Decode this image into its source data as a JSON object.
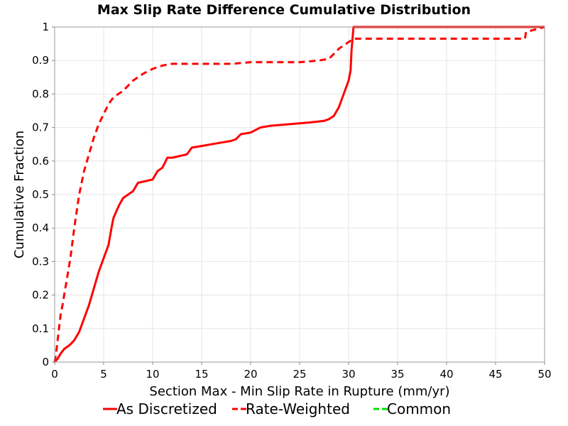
{
  "chart_data": {
    "type": "line",
    "title": "Max Slip Rate Difference Cumulative Distribution",
    "xlabel": "Section Max - Min Slip Rate in Rupture (mm/yr)",
    "ylabel": "Cumulative Fraction",
    "xlim": [
      0,
      50
    ],
    "ylim": [
      0,
      1
    ],
    "x_ticks": [
      "0",
      "5",
      "10",
      "15",
      "20",
      "25",
      "30",
      "35",
      "40",
      "45",
      "50"
    ],
    "y_ticks": [
      "0",
      "0.1",
      "0.2",
      "0.3",
      "0.4",
      "0.5",
      "0.6",
      "0.7",
      "0.8",
      "0.9",
      "1"
    ],
    "grid": true,
    "legend_position": "bottom",
    "series": [
      {
        "name": "As Discretized",
        "color": "#ff0000",
        "dash": "solid",
        "x": [
          0,
          0.3,
          0.6,
          1.0,
          1.5,
          2.0,
          2.5,
          3.0,
          3.5,
          4.0,
          4.5,
          5.0,
          5.5,
          5.8,
          6.0,
          6.3,
          6.6,
          7.0,
          8.0,
          8.5,
          10.0,
          10.5,
          11.0,
          11.5,
          12.0,
          13.5,
          14.0,
          15.0,
          16.0,
          17.0,
          18.0,
          18.5,
          19.0,
          20.0,
          21.0,
          22.0,
          24.0,
          26.0,
          27.5,
          28.0,
          28.5,
          29.0,
          29.5,
          30.0,
          30.2,
          30.3,
          30.5,
          31.0,
          48.0,
          50.0
        ],
        "y": [
          0,
          0.01,
          0.025,
          0.04,
          0.05,
          0.065,
          0.09,
          0.13,
          0.17,
          0.22,
          0.27,
          0.31,
          0.35,
          0.4,
          0.43,
          0.45,
          0.47,
          0.49,
          0.51,
          0.535,
          0.545,
          0.57,
          0.58,
          0.61,
          0.61,
          0.62,
          0.64,
          0.645,
          0.65,
          0.655,
          0.66,
          0.665,
          0.68,
          0.685,
          0.7,
          0.705,
          0.71,
          0.715,
          0.72,
          0.725,
          0.735,
          0.76,
          0.8,
          0.84,
          0.87,
          0.93,
          1.0,
          1.0,
          1.0,
          1.0
        ]
      },
      {
        "name": "Rate-Weighted",
        "color": "#ff0000",
        "dash": "dashed",
        "x": [
          0,
          0.2,
          0.4,
          0.6,
          0.8,
          1.2,
          1.6,
          2.0,
          2.5,
          3.0,
          3.5,
          4.0,
          4.5,
          5.0,
          5.5,
          6.0,
          7.0,
          8.0,
          9.0,
          10.0,
          11.0,
          12.0,
          15.0,
          18.0,
          20.0,
          25.0,
          27.0,
          28.0,
          28.5,
          29.0,
          30.0,
          30.5,
          35.0,
          40.0,
          45.0,
          48.0,
          48.1,
          50.0
        ],
        "y": [
          0,
          0.04,
          0.09,
          0.14,
          0.17,
          0.24,
          0.31,
          0.4,
          0.5,
          0.57,
          0.62,
          0.67,
          0.71,
          0.74,
          0.77,
          0.79,
          0.81,
          0.84,
          0.86,
          0.875,
          0.885,
          0.89,
          0.89,
          0.89,
          0.895,
          0.895,
          0.9,
          0.905,
          0.92,
          0.935,
          0.955,
          0.965,
          0.965,
          0.965,
          0.965,
          0.965,
          0.985,
          1.0
        ]
      },
      {
        "name": "Common",
        "color": "#00dd00",
        "dash": "dashed",
        "x": [],
        "y": []
      }
    ]
  }
}
